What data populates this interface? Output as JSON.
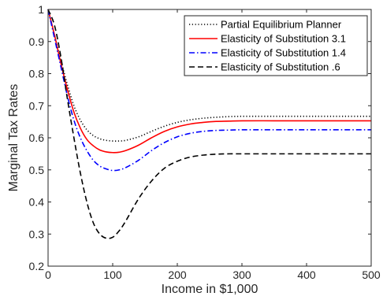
{
  "chart_data": {
    "type": "line",
    "title": "",
    "xlabel": "Income in $1,000",
    "ylabel": "Marginal Tax Rates",
    "xlim": [
      0,
      500
    ],
    "ylim": [
      0.2,
      1
    ],
    "xticks": [
      0,
      100,
      200,
      300,
      400,
      500
    ],
    "xtick_labels": [
      "0",
      "100",
      "200",
      "300",
      "400",
      "500"
    ],
    "yticks": [
      0.2,
      0.3,
      0.4,
      0.5,
      0.6,
      0.7,
      0.8,
      0.9,
      1
    ],
    "ytick_labels": [
      "0.2",
      "0.3",
      "0.4",
      "0.5",
      "0.6",
      "0.7",
      "0.8",
      "0.9",
      "1"
    ],
    "grid": false,
    "legend_position": "top-right",
    "series": [
      {
        "name": "Partial Equilibrium Planner",
        "color": "#000000",
        "style": "dotted",
        "x": [
          0,
          10,
          20,
          30,
          40,
          50,
          60,
          70,
          80,
          90,
          100,
          110,
          120,
          140,
          160,
          180,
          200,
          220,
          240,
          260,
          280,
          300,
          350,
          400,
          450,
          500
        ],
        "y": [
          1.0,
          0.92,
          0.84,
          0.765,
          0.7,
          0.655,
          0.625,
          0.607,
          0.597,
          0.592,
          0.59,
          0.59,
          0.592,
          0.603,
          0.62,
          0.636,
          0.648,
          0.656,
          0.661,
          0.664,
          0.666,
          0.667,
          0.667,
          0.667,
          0.667,
          0.667
        ]
      },
      {
        "name": "Elasticity of Substitution 3.1",
        "color": "#ff0000",
        "style": "solid",
        "x": [
          0,
          10,
          20,
          30,
          40,
          50,
          60,
          70,
          80,
          90,
          100,
          110,
          120,
          140,
          160,
          180,
          200,
          220,
          240,
          260,
          280,
          300,
          350,
          400,
          450,
          500
        ],
        "y": [
          1.0,
          0.92,
          0.83,
          0.75,
          0.68,
          0.63,
          0.595,
          0.575,
          0.562,
          0.556,
          0.554,
          0.555,
          0.56,
          0.577,
          0.6,
          0.62,
          0.634,
          0.643,
          0.648,
          0.651,
          0.652,
          0.653,
          0.653,
          0.653,
          0.653,
          0.653
        ]
      },
      {
        "name": "Elasticity of Substitution 1.4",
        "color": "#0000ff",
        "style": "dashdot",
        "x": [
          0,
          10,
          20,
          30,
          40,
          50,
          60,
          70,
          80,
          90,
          100,
          110,
          120,
          140,
          160,
          180,
          200,
          220,
          240,
          260,
          280,
          300,
          350,
          400,
          450,
          500
        ],
        "y": [
          1.0,
          0.91,
          0.82,
          0.73,
          0.655,
          0.6,
          0.56,
          0.53,
          0.512,
          0.503,
          0.498,
          0.5,
          0.507,
          0.53,
          0.56,
          0.585,
          0.603,
          0.614,
          0.62,
          0.623,
          0.624,
          0.625,
          0.625,
          0.625,
          0.625,
          0.625
        ]
      },
      {
        "name": "Elasticity of Substitution .6",
        "color": "#000000",
        "style": "dashed",
        "x": [
          0,
          10,
          20,
          30,
          40,
          50,
          60,
          70,
          80,
          90,
          100,
          110,
          120,
          140,
          160,
          180,
          200,
          220,
          240,
          260,
          280,
          300,
          350,
          400,
          450,
          500
        ],
        "y": [
          1.0,
          0.95,
          0.85,
          0.72,
          0.6,
          0.49,
          0.4,
          0.335,
          0.3,
          0.287,
          0.29,
          0.31,
          0.34,
          0.41,
          0.465,
          0.505,
          0.527,
          0.54,
          0.546,
          0.549,
          0.55,
          0.55,
          0.55,
          0.55,
          0.55,
          0.55
        ]
      }
    ]
  }
}
